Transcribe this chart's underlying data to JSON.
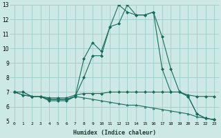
{
  "xlabel": "Humidex (Indice chaleur)",
  "bg_color": "#cce9e5",
  "grid_color": "#9dccc7",
  "line_color": "#1a6b5a",
  "xlim": [
    -0.5,
    23.5
  ],
  "ylim": [
    5,
    13
  ],
  "yticks": [
    5,
    6,
    7,
    8,
    9,
    10,
    11,
    12,
    13
  ],
  "xticks": [
    0,
    1,
    2,
    3,
    4,
    5,
    6,
    7,
    8,
    9,
    10,
    11,
    12,
    13,
    14,
    15,
    16,
    17,
    18,
    19,
    20,
    21,
    22,
    23
  ],
  "line1_x": [
    0,
    1,
    2,
    3,
    4,
    5,
    6,
    7,
    8,
    9,
    10,
    11,
    12,
    13,
    14,
    15,
    16,
    17,
    18,
    19,
    20,
    21,
    22,
    23
  ],
  "line1_y": [
    7.0,
    7.0,
    6.7,
    6.7,
    6.4,
    6.4,
    6.4,
    6.7,
    9.3,
    10.4,
    9.8,
    11.5,
    11.7,
    13.0,
    12.3,
    12.3,
    12.5,
    10.8,
    8.6,
    7.0,
    6.7,
    5.5,
    5.2,
    5.1
  ],
  "line2_x": [
    0,
    1,
    2,
    3,
    4,
    5,
    6,
    7,
    8,
    9,
    10,
    11,
    12,
    13,
    14,
    15,
    16,
    17,
    18,
    19,
    20,
    21,
    22,
    23
  ],
  "line2_y": [
    7.0,
    7.0,
    6.7,
    6.7,
    6.5,
    6.5,
    6.5,
    6.7,
    8.0,
    9.5,
    9.5,
    11.5,
    13.0,
    12.5,
    12.3,
    12.3,
    12.5,
    8.6,
    7.0,
    7.0,
    6.7,
    5.5,
    5.2,
    5.1
  ],
  "line3_x": [
    0,
    1,
    2,
    3,
    4,
    5,
    6,
    7,
    8,
    9,
    10,
    11,
    12,
    13,
    14,
    15,
    16,
    17,
    18,
    19,
    20,
    21,
    22,
    23
  ],
  "line3_y": [
    7.0,
    6.8,
    6.7,
    6.7,
    6.6,
    6.6,
    6.6,
    6.8,
    6.9,
    6.9,
    6.9,
    7.0,
    7.0,
    7.0,
    7.0,
    7.0,
    7.0,
    7.0,
    7.0,
    7.0,
    6.8,
    6.7,
    6.7,
    6.7
  ],
  "line4_x": [
    0,
    1,
    2,
    3,
    4,
    5,
    6,
    7,
    8,
    9,
    10,
    11,
    12,
    13,
    14,
    15,
    16,
    17,
    18,
    19,
    20,
    21,
    22,
    23
  ],
  "line4_y": [
    7.0,
    6.8,
    6.7,
    6.7,
    6.5,
    6.5,
    6.5,
    6.7,
    6.6,
    6.5,
    6.4,
    6.3,
    6.2,
    6.1,
    6.1,
    6.0,
    5.9,
    5.8,
    5.7,
    5.6,
    5.5,
    5.3,
    5.2,
    5.1
  ]
}
